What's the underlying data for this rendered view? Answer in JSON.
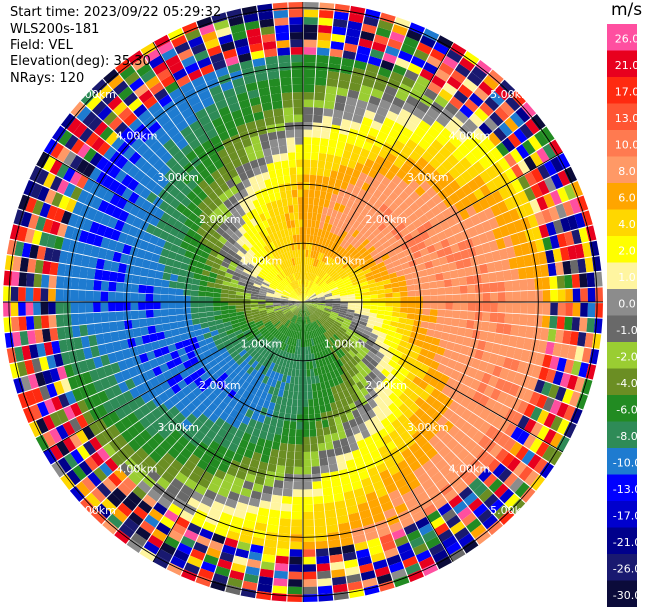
{
  "header": {
    "start_time": "Start time: 2023/09/22 05:29:32",
    "instrument": "WLS200s-181",
    "field": "Field: VEL",
    "elevation": "Elevation(deg): 35.30",
    "nrays": "NRays: 120"
  },
  "colorbar": {
    "unit": "m/s",
    "levels": [
      {
        "label": "26.0",
        "color": "#ff4fa0"
      },
      {
        "label": "21.0",
        "color": "#e8001e"
      },
      {
        "label": "17.0",
        "color": "#ff2a10"
      },
      {
        "label": "13.0",
        "color": "#ff5533"
      },
      {
        "label": "10.0",
        "color": "#ff7a50"
      },
      {
        "label": "8.0",
        "color": "#ff9966"
      },
      {
        "label": "6.0",
        "color": "#ffa500"
      },
      {
        "label": "4.0",
        "color": "#ffd700"
      },
      {
        "label": "2.0",
        "color": "#ffff00"
      },
      {
        "label": "1.0",
        "color": "#fff5a0"
      },
      {
        "label": "0.0",
        "color": "#8c8c8c"
      },
      {
        "label": "-1.0",
        "color": "#696969"
      },
      {
        "label": "-2.0",
        "color": "#9acd32"
      },
      {
        "label": "-4.0",
        "color": "#6b8e23"
      },
      {
        "label": "-6.0",
        "color": "#228b22"
      },
      {
        "label": "-8.0",
        "color": "#2e8b57"
      },
      {
        "label": "-10.0",
        "color": "#1e7bd0"
      },
      {
        "label": "-13.0",
        "color": "#0000ff"
      },
      {
        "label": "-17.0",
        "color": "#0000cd"
      },
      {
        "label": "-21.0",
        "color": "#00008b"
      },
      {
        "label": "-26.0",
        "color": "#191970"
      },
      {
        "label": "-30.0",
        "color": "#0b0b3a"
      }
    ]
  },
  "chart_data": {
    "type": "heatmap",
    "projection": "polar-ppi",
    "field": "VEL",
    "units": "m/s",
    "n_rays": 120,
    "max_range_km": 5.1,
    "range_rings_km": [
      1.0,
      2.0,
      3.0,
      4.0,
      5.0
    ],
    "range_ring_labels": [
      "1.00km",
      "2.00km",
      "3.00km",
      "4.00km",
      "5.00km"
    ],
    "spoke_angles_deg": [
      0,
      30,
      60,
      90,
      120,
      150,
      180,
      210,
      240,
      270,
      300,
      330
    ],
    "velocity_pattern": {
      "positive_center_azimuth_deg": 105,
      "negative_center_azimuth_deg": 285,
      "max_abs_velocity_ms": 10,
      "noise_beyond_km": 4.2
    },
    "color_levels": [
      26.0,
      21.0,
      17.0,
      13.0,
      10.0,
      8.0,
      6.0,
      4.0,
      2.0,
      1.0,
      0.0,
      -1.0,
      -2.0,
      -4.0,
      -6.0,
      -8.0,
      -10.0,
      -13.0,
      -17.0,
      -21.0,
      -26.0,
      -30.0
    ]
  }
}
